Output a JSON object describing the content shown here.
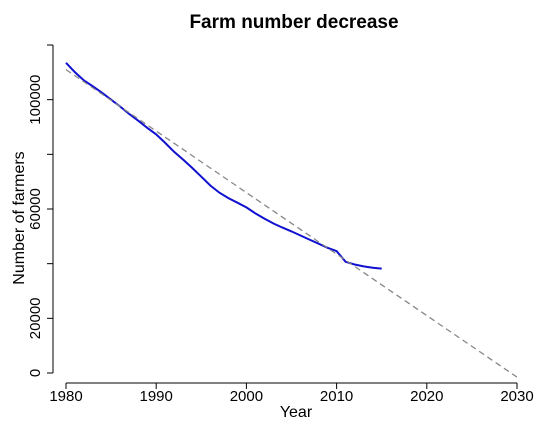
{
  "chart_data": {
    "type": "line",
    "title": "Farm number decrease",
    "xlabel": "Year",
    "ylabel": "Number of farmers",
    "xlim": [
      1980,
      2030
    ],
    "ylim": [
      0,
      120000
    ],
    "xticks": [
      1980,
      1990,
      2000,
      2010,
      2020,
      2030
    ],
    "yticks": [
      0,
      20000,
      60000,
      100000
    ],
    "ytick_labels": [
      "0",
      "20000",
      "60000",
      "100000"
    ],
    "grid": false,
    "series": [
      {
        "style": "solid",
        "color": "#1010d0",
        "x": [
          1980,
          1981,
          1982,
          1983,
          1984,
          1985,
          1986,
          1987,
          1988,
          1989,
          1990,
          1991,
          1992,
          1993,
          1994,
          1995,
          1996,
          1997,
          1998,
          1999,
          2000,
          2001,
          2002,
          2003,
          2004,
          2005,
          2006,
          2007,
          2008,
          2009,
          2010,
          2011,
          2012,
          2013,
          2014,
          2015
        ],
        "y": [
          113500,
          110000,
          107000,
          104800,
          102500,
          100000,
          97500,
          94800,
          92300,
          89700,
          87300,
          84200,
          80900,
          78000,
          75000,
          71800,
          68600,
          66000,
          64000,
          62300,
          60600,
          58400,
          56500,
          54700,
          53200,
          51800,
          50300,
          48800,
          47300,
          45800,
          44600,
          40700,
          39700,
          39000,
          38500,
          38200
        ]
      },
      {
        "style": "dashed",
        "color": "#888888",
        "x": [
          1980,
          2030
        ],
        "y": [
          111000,
          -1500
        ]
      }
    ]
  }
}
